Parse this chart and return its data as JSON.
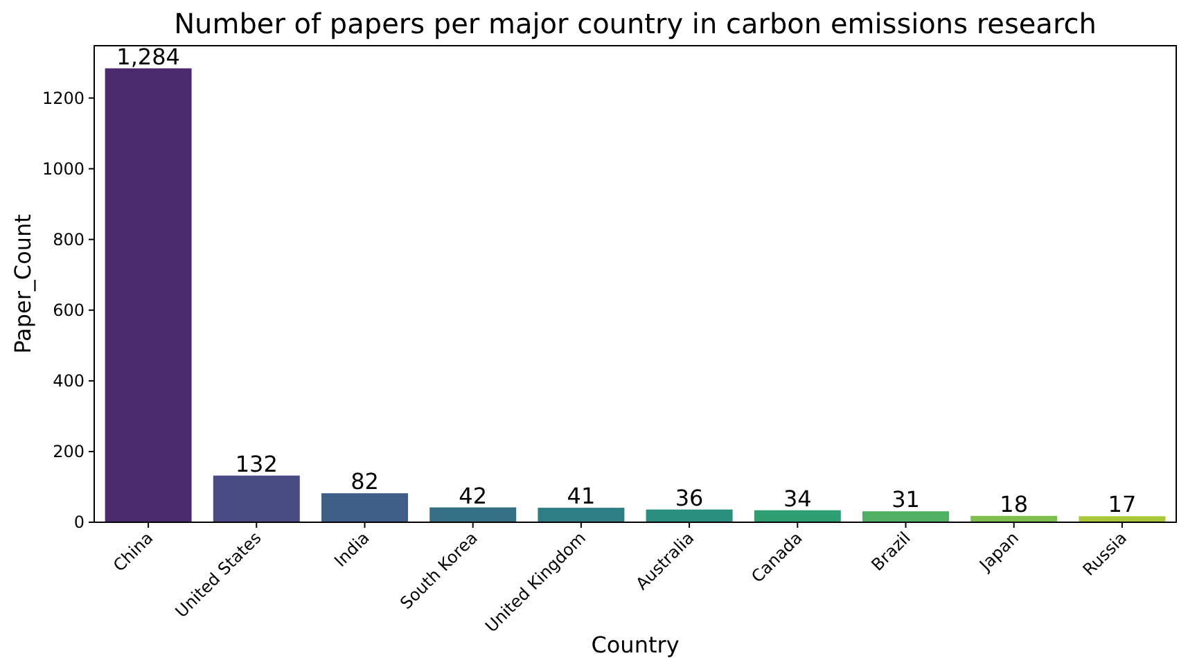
{
  "chart_data": {
    "type": "bar",
    "title": "Number of papers per major country in carbon emissions research",
    "xlabel": "Country",
    "ylabel": "Paper_Count",
    "categories": [
      "China",
      "United States",
      "India",
      "South Korea",
      "United Kingdom",
      "Australia",
      "Canada",
      "Brazil",
      "Japan",
      "Russia"
    ],
    "values": [
      1284,
      132,
      82,
      42,
      41,
      36,
      34,
      31,
      18,
      17
    ],
    "value_labels": [
      "1,284",
      "132",
      "82",
      "42",
      "41",
      "36",
      "34",
      "31",
      "18",
      "17"
    ],
    "colors": [
      "#4a2a6c",
      "#4a4a85",
      "#3f5f88",
      "#356f85",
      "#2d7f83",
      "#2a8f7e",
      "#2f9f73",
      "#4fb063",
      "#7fbf4f",
      "#a9c83a"
    ],
    "ylim": [
      0,
      1348
    ],
    "yticks": [
      0,
      200,
      400,
      600,
      800,
      1000,
      1200
    ],
    "grid": false
  }
}
